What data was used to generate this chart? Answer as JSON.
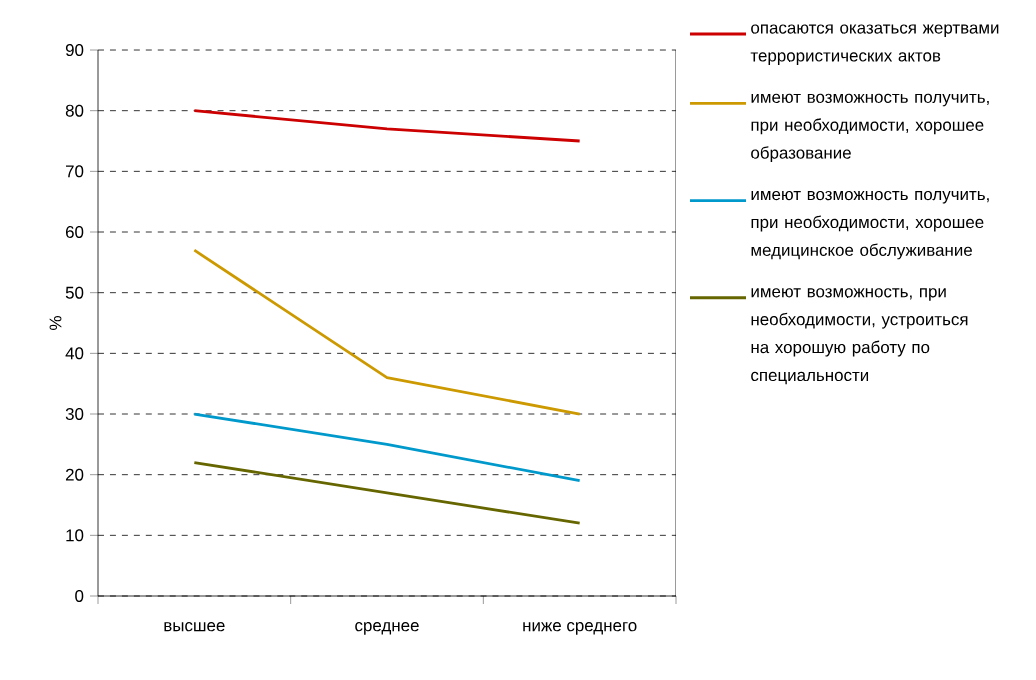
{
  "chart_data": {
    "type": "line",
    "ylabel": "%",
    "categories": [
      "высшее",
      "среднее",
      "ниже среднего"
    ],
    "series": [
      {
        "name": "опасаются оказаться жертвами террористических актов",
        "color": "#cc0000",
        "values": [
          80,
          77,
          75
        ]
      },
      {
        "name": "имеют возможность получить, при необходимости, хорошее образование",
        "color": "#cc9900",
        "values": [
          57,
          36,
          30
        ]
      },
      {
        "name": "имеют возможность получить, при необходимости, хорошее медицинское обслуживание",
        "color": "#0099cc",
        "values": [
          30,
          25,
          19
        ]
      },
      {
        "name": "имеют возможность, при необходимости, устроиться на хорошую работу по специальности",
        "color": "#666600",
        "values": [
          22,
          17,
          12
        ]
      }
    ],
    "ylim": [
      0,
      90
    ],
    "yticks": [
      0,
      10,
      20,
      30,
      40,
      50,
      60,
      70,
      80,
      90
    ],
    "grid": "y",
    "legend": "right",
    "marker": "none",
    "line_style": "solid"
  }
}
